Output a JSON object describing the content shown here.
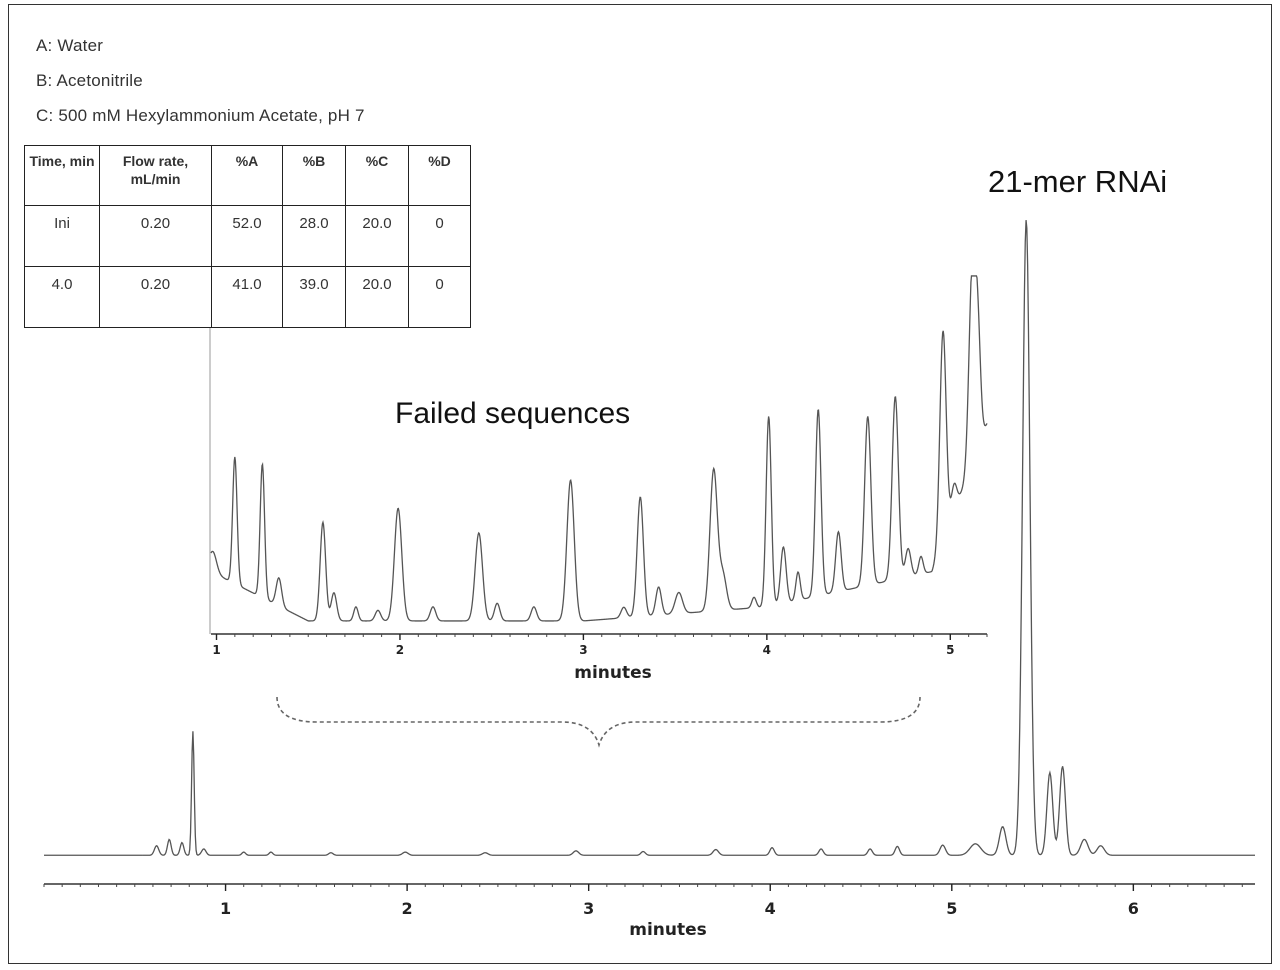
{
  "legend": {
    "solvent_a": "A: Water",
    "solvent_b": "B: Acetonitrile",
    "solvent_c": "C: 500 mM Hexylammonium Acetate, pH 7"
  },
  "gradient_table": {
    "headers": [
      "Time, min",
      "Flow rate, mL/min",
      "%A",
      "%B",
      "%C",
      "%D"
    ],
    "rows": [
      [
        "Ini",
        "0.20",
        "52.0",
        "28.0",
        "20.0",
        "0"
      ],
      [
        "4.0",
        "0.20",
        "41.0",
        "39.0",
        "20.0",
        "0"
      ]
    ]
  },
  "annotations": {
    "main_peak_label": "21-mer RNAi",
    "inset_label": "Failed sequences"
  },
  "chart_data": [
    {
      "id": "main",
      "type": "line",
      "xlabel": "minutes",
      "ylabel": "",
      "xlim": [
        0,
        6.67
      ],
      "ylim": [
        0,
        100
      ],
      "x_ticks": [
        1,
        2,
        3,
        4,
        5,
        6
      ],
      "baseline": 2,
      "peaks": [
        {
          "x": 0.62,
          "y": 1.5,
          "w": 0.012
        },
        {
          "x": 0.69,
          "y": 2.5,
          "w": 0.01
        },
        {
          "x": 0.76,
          "y": 2.0,
          "w": 0.01
        },
        {
          "x": 0.82,
          "y": 19.5,
          "w": 0.007
        },
        {
          "x": 0.88,
          "y": 1.0,
          "w": 0.012
        },
        {
          "x": 1.1,
          "y": 0.5,
          "w": 0.01
        },
        {
          "x": 1.25,
          "y": 0.5,
          "w": 0.01
        },
        {
          "x": 1.58,
          "y": 0.4,
          "w": 0.012
        },
        {
          "x": 1.99,
          "y": 0.5,
          "w": 0.015
        },
        {
          "x": 2.43,
          "y": 0.4,
          "w": 0.015
        },
        {
          "x": 2.93,
          "y": 0.7,
          "w": 0.015
        },
        {
          "x": 3.3,
          "y": 0.6,
          "w": 0.012
        },
        {
          "x": 3.7,
          "y": 0.9,
          "w": 0.015
        },
        {
          "x": 4.01,
          "y": 1.2,
          "w": 0.012
        },
        {
          "x": 4.28,
          "y": 1.0,
          "w": 0.012
        },
        {
          "x": 4.55,
          "y": 1.0,
          "w": 0.012
        },
        {
          "x": 4.7,
          "y": 1.4,
          "w": 0.012
        },
        {
          "x": 4.95,
          "y": 1.6,
          "w": 0.015
        },
        {
          "x": 5.13,
          "y": 1.8,
          "w": 0.03
        },
        {
          "x": 5.28,
          "y": 4.5,
          "w": 0.018
        },
        {
          "x": 5.41,
          "y": 100,
          "w": 0.02
        },
        {
          "x": 5.54,
          "y": 13.0,
          "w": 0.016
        },
        {
          "x": 5.61,
          "y": 14.0,
          "w": 0.016
        },
        {
          "x": 5.73,
          "y": 2.5,
          "w": 0.02
        },
        {
          "x": 5.82,
          "y": 1.5,
          "w": 0.02
        }
      ]
    },
    {
      "id": "inset",
      "type": "line",
      "xlabel": "minutes",
      "ylabel": "",
      "xlim": [
        0.97,
        5.2
      ],
      "ylim": [
        0,
        100
      ],
      "x_ticks": [
        1,
        2,
        3,
        4,
        5
      ],
      "baseline_points": [
        [
          0.97,
          18
        ],
        [
          1.5,
          4
        ],
        [
          3.0,
          4
        ],
        [
          4.0,
          8
        ],
        [
          4.9,
          18
        ],
        [
          5.2,
          60
        ]
      ],
      "peaks": [
        {
          "x": 0.98,
          "y": 6,
          "w": 0.02
        },
        {
          "x": 1.1,
          "y": 36,
          "w": 0.012
        },
        {
          "x": 1.25,
          "y": 38,
          "w": 0.012
        },
        {
          "x": 1.34,
          "y": 8,
          "w": 0.015
        },
        {
          "x": 1.58,
          "y": 28,
          "w": 0.015
        },
        {
          "x": 1.64,
          "y": 8,
          "w": 0.015
        },
        {
          "x": 1.76,
          "y": 4,
          "w": 0.012
        },
        {
          "x": 1.88,
          "y": 3,
          "w": 0.015
        },
        {
          "x": 1.99,
          "y": 32,
          "w": 0.02
        },
        {
          "x": 2.18,
          "y": 4,
          "w": 0.015
        },
        {
          "x": 2.43,
          "y": 25,
          "w": 0.02
        },
        {
          "x": 2.53,
          "y": 5,
          "w": 0.015
        },
        {
          "x": 2.73,
          "y": 4,
          "w": 0.015
        },
        {
          "x": 2.93,
          "y": 40,
          "w": 0.02
        },
        {
          "x": 3.22,
          "y": 3,
          "w": 0.015
        },
        {
          "x": 3.31,
          "y": 34,
          "w": 0.017
        },
        {
          "x": 3.41,
          "y": 8,
          "w": 0.015
        },
        {
          "x": 3.52,
          "y": 6,
          "w": 0.02
        },
        {
          "x": 3.71,
          "y": 40,
          "w": 0.02
        },
        {
          "x": 3.76,
          "y": 10,
          "w": 0.02
        },
        {
          "x": 3.93,
          "y": 3,
          "w": 0.012
        },
        {
          "x": 4.01,
          "y": 54,
          "w": 0.014
        },
        {
          "x": 4.09,
          "y": 16,
          "w": 0.015
        },
        {
          "x": 4.17,
          "y": 8,
          "w": 0.012
        },
        {
          "x": 4.28,
          "y": 53,
          "w": 0.015
        },
        {
          "x": 4.39,
          "y": 17,
          "w": 0.015
        },
        {
          "x": 4.55,
          "y": 48,
          "w": 0.017
        },
        {
          "x": 4.7,
          "y": 52,
          "w": 0.017
        },
        {
          "x": 4.77,
          "y": 8,
          "w": 0.015
        },
        {
          "x": 4.84,
          "y": 5,
          "w": 0.012
        },
        {
          "x": 4.96,
          "y": 60,
          "w": 0.017
        },
        {
          "x": 5.02,
          "y": 8,
          "w": 0.015
        },
        {
          "x": 5.12,
          "y": 56,
          "w": 0.018
        },
        {
          "x": 5.15,
          "y": 30,
          "w": 0.015
        }
      ]
    }
  ]
}
